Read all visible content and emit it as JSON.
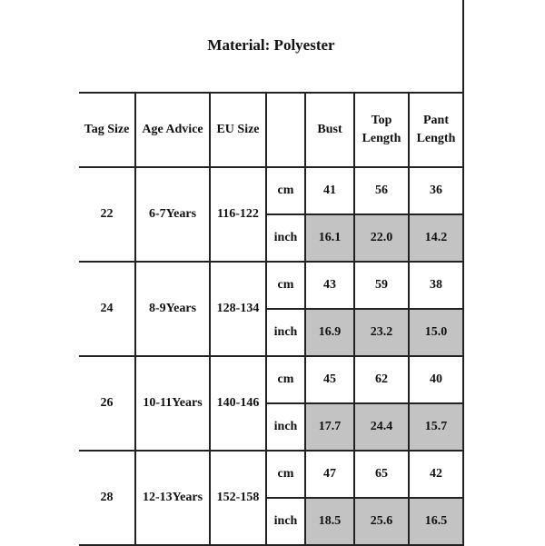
{
  "title": "Material: Polyester",
  "headers": [
    "Tag Size",
    "Age Advice",
    "EU Size",
    "",
    "Bust",
    "Top Length",
    "Pant Length"
  ],
  "units": [
    "cm",
    "inch"
  ],
  "rows": [
    {
      "tag": "22",
      "age": "6-7Years",
      "eu": "116-122",
      "cm": [
        "41",
        "56",
        "36"
      ],
      "inch": [
        "16.1",
        "22.0",
        "14.2"
      ]
    },
    {
      "tag": "24",
      "age": "8-9Years",
      "eu": "128-134",
      "cm": [
        "43",
        "59",
        "38"
      ],
      "inch": [
        "16.9",
        "23.2",
        "15.0"
      ]
    },
    {
      "tag": "26",
      "age": "10-11Years",
      "eu": "140-146",
      "cm": [
        "45",
        "62",
        "40"
      ],
      "inch": [
        "17.7",
        "24.4",
        "15.7"
      ]
    },
    {
      "tag": "28",
      "age": "12-13Years",
      "eu": "152-158",
      "cm": [
        "47",
        "65",
        "42"
      ],
      "inch": [
        "18.5",
        "25.6",
        "16.5"
      ]
    }
  ],
  "colors": {
    "inch_cell_fill": "#c3c3c3",
    "border": "#222222"
  }
}
